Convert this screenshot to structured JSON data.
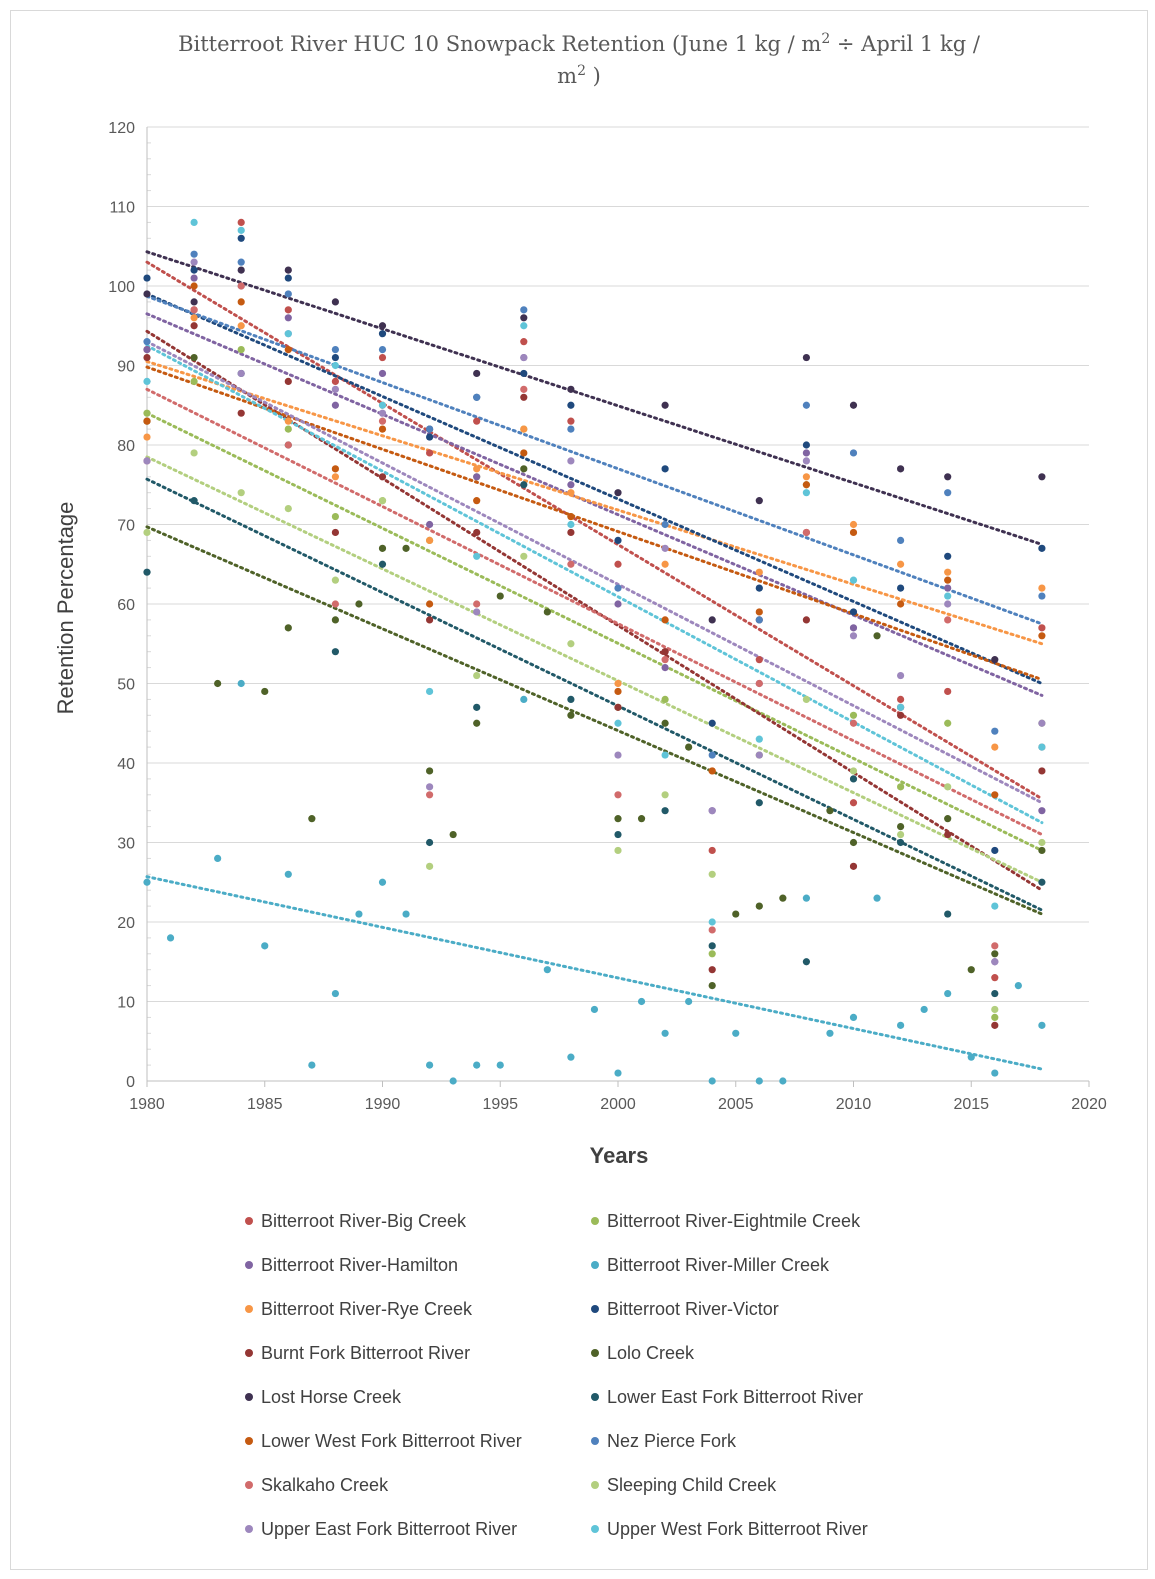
{
  "chart_data": {
    "type": "scatter",
    "title": "Bitterroot River HUC 10 Snowpack Retention (June 1 kg / m² ÷ April 1 kg / m²)",
    "title_lines": [
      "Bitterroot River HUC 10 Snowpack Retention (June 1 kg / m",
      "2",
      " ÷ April 1 kg /",
      "m",
      "2",
      " )"
    ],
    "xlabel": "Years",
    "ylabel": "Retention Percentage",
    "xlim": [
      1980,
      2020
    ],
    "ylim": [
      0,
      120
    ],
    "x_ticks": [
      1980,
      1985,
      1990,
      1995,
      2000,
      2005,
      2010,
      2015,
      2020
    ],
    "y_ticks": [
      0,
      10,
      20,
      30,
      40,
      50,
      60,
      70,
      80,
      90,
      100,
      110,
      120
    ],
    "grid": "horizontal",
    "trendlines": "linear, dotted",
    "legend_position": "bottom",
    "series": [
      {
        "name": "Bitterroot River-Big Creek",
        "color": "#c0504d",
        "x": [
          1980,
          1982,
          1984,
          1986,
          1988,
          1990,
          1992,
          1994,
          1996,
          1998,
          2000,
          2002,
          2004,
          2006,
          2008,
          2010,
          2012,
          2014,
          2016,
          2018
        ],
        "y": [
          92,
          97,
          108,
          97,
          88,
          91,
          79,
          83,
          93,
          83,
          65,
          54,
          29,
          53,
          69,
          35,
          48,
          49,
          13,
          57
        ],
        "trend": [
          103.0,
          35.5
        ]
      },
      {
        "name": "Bitterroot River-Eightmile Creek",
        "color": "#9bbb59",
        "x": [
          1980,
          1982,
          1984,
          1986,
          1988,
          1990,
          1992,
          1994,
          1996,
          1998,
          2000,
          2002,
          2004,
          2006,
          2008,
          2010,
          2012,
          2014,
          2016,
          2018
        ],
        "y": [
          84,
          88,
          92,
          82,
          71,
          73,
          68,
          76,
          82,
          71,
          47,
          48,
          16,
          41,
          75,
          46,
          37,
          45,
          8,
          45
        ],
        "trend": [
          84.0,
          29.0
        ]
      },
      {
        "name": "Bitterroot River-Hamilton",
        "color": "#8064a2",
        "x": [
          1980,
          1982,
          1984,
          1986,
          1988,
          1990,
          1992,
          1994,
          1996,
          1998,
          2000,
          2002,
          2004,
          2006,
          2008,
          2010,
          2012,
          2014,
          2016,
          2018
        ],
        "y": [
          92,
          101,
          100,
          96,
          85,
          89,
          70,
          76,
          91,
          75,
          60,
          52,
          34,
          50,
          79,
          57,
          47,
          62,
          15,
          34
        ],
        "trend": [
          96.5,
          48.5
        ]
      },
      {
        "name": "Bitterroot River-Miller Creek",
        "color": "#4bacc6",
        "x": [
          1980,
          1981,
          1983,
          1984,
          1985,
          1986,
          1987,
          1988,
          1989,
          1990,
          1991,
          1992,
          1993,
          1994,
          1995,
          1996,
          1997,
          1998,
          1999,
          2000,
          2001,
          2002,
          2003,
          2004,
          2005,
          2006,
          2007,
          2008,
          2009,
          2010,
          2011,
          2012,
          2013,
          2014,
          2015,
          2016,
          2017,
          2018
        ],
        "y": [
          25,
          18,
          28,
          50,
          17,
          26,
          2,
          11,
          21,
          25,
          21,
          2,
          0,
          2,
          2,
          48,
          14,
          3,
          9,
          1,
          10,
          6,
          10,
          0,
          6,
          0,
          0,
          23,
          6,
          8,
          23,
          7,
          9,
          11,
          3,
          1,
          12,
          7
        ],
        "trend": [
          25.7,
          1.5
        ]
      },
      {
        "name": "Bitterroot River-Rye Creek",
        "color": "#f79646",
        "x": [
          1980,
          1982,
          1984,
          1986,
          1988,
          1990,
          1992,
          1994,
          1996,
          1998,
          2000,
          2002,
          2004,
          2006,
          2008,
          2010,
          2012,
          2014,
          2016,
          2018
        ],
        "y": [
          81,
          96,
          95,
          83,
          76,
          85,
          68,
          77,
          82,
          74,
          50,
          65,
          39,
          64,
          76,
          70,
          65,
          64,
          42,
          62
        ],
        "trend": [
          90.5,
          55.0
        ]
      },
      {
        "name": "Bitterroot River-Victor",
        "color": "#1f497d",
        "x": [
          1980,
          1982,
          1984,
          1986,
          1988,
          1990,
          1992,
          1994,
          1996,
          1998,
          2000,
          2002,
          2004,
          2006,
          2008,
          2010,
          2012,
          2014,
          2016,
          2018
        ],
        "y": [
          101,
          102,
          106,
          101,
          91,
          94,
          81,
          86,
          89,
          85,
          68,
          77,
          45,
          62,
          80,
          59,
          62,
          66,
          29,
          67
        ],
        "trend": [
          99.0,
          50.0
        ]
      },
      {
        "name": "Burnt Fork Bitterroot River",
        "color": "#943634",
        "x": [
          1980,
          1982,
          1984,
          1986,
          1988,
          1990,
          1992,
          1994,
          1996,
          1998,
          2000,
          2002,
          2004,
          2006,
          2008,
          2010,
          2012,
          2014,
          2016,
          2018
        ],
        "y": [
          91,
          95,
          84,
          88,
          69,
          76,
          58,
          69,
          86,
          69,
          47,
          54,
          14,
          58,
          58,
          27,
          46,
          31,
          7,
          39
        ],
        "trend": [
          94.3,
          24.0
        ]
      },
      {
        "name": "Lolo Creek",
        "color": "#4f6228",
        "x": [
          1980,
          1982,
          1983,
          1985,
          1986,
          1987,
          1988,
          1989,
          1990,
          1991,
          1992,
          1993,
          1994,
          1995,
          1996,
          1997,
          1998,
          2000,
          2001,
          2002,
          2003,
          2004,
          2005,
          2006,
          2007,
          2009,
          2010,
          2011,
          2012,
          2014,
          2015,
          2016,
          2018
        ],
        "y": [
          83,
          91,
          50,
          49,
          57,
          33,
          58,
          60,
          67,
          67,
          39,
          31,
          45,
          61,
          77,
          59,
          46,
          33,
          33,
          45,
          42,
          12,
          21,
          22,
          23,
          34,
          30,
          56,
          32,
          33,
          14,
          16,
          29
        ],
        "trend": [
          69.7,
          21.0
        ]
      },
      {
        "name": "Lost Horse Creek",
        "color": "#3f3151",
        "x": [
          1980,
          1982,
          1984,
          1986,
          1988,
          1990,
          1992,
          1994,
          1996,
          1998,
          2000,
          2002,
          2004,
          2006,
          2008,
          2010,
          2012,
          2014,
          2016,
          2018
        ],
        "y": [
          99,
          98,
          102,
          102,
          98,
          95,
          82,
          89,
          96,
          87,
          74,
          85,
          58,
          73,
          91,
          85,
          77,
          76,
          53,
          76
        ],
        "trend": [
          104.3,
          67.5
        ]
      },
      {
        "name": "Lower East Fork Bitterroot River",
        "color": "#215968",
        "x": [
          1980,
          1982,
          1984,
          1986,
          1988,
          1990,
          1992,
          1994,
          1996,
          1998,
          2000,
          2002,
          2004,
          2006,
          2008,
          2010,
          2012,
          2014,
          2016,
          2018
        ],
        "y": [
          64,
          73,
          89,
          80,
          54,
          65,
          30,
          47,
          75,
          48,
          31,
          34,
          17,
          35,
          15,
          38,
          30,
          21,
          11,
          25
        ],
        "trend": [
          75.7,
          21.5
        ]
      },
      {
        "name": "Lower West Fork Bitterroot River",
        "color": "#c55a11",
        "x": [
          1980,
          1982,
          1984,
          1986,
          1988,
          1990,
          1992,
          1994,
          1996,
          1998,
          2000,
          2002,
          2004,
          2006,
          2008,
          2010,
          2012,
          2014,
          2016,
          2018
        ],
        "y": [
          83,
          100,
          98,
          92,
          77,
          82,
          60,
          73,
          79,
          71,
          49,
          58,
          39,
          59,
          75,
          69,
          60,
          63,
          36,
          56
        ],
        "trend": [
          89.8,
          50.5
        ]
      },
      {
        "name": "Nez Pierce Fork",
        "color": "#4f81bd",
        "x": [
          1980,
          1982,
          1984,
          1986,
          1988,
          1990,
          1992,
          1994,
          1996,
          1998,
          2000,
          2002,
          2004,
          2006,
          2008,
          2010,
          2012,
          2014,
          2016,
          2018
        ],
        "y": [
          93,
          104,
          103,
          99,
          92,
          92,
          82,
          86,
          97,
          82,
          62,
          70,
          41,
          58,
          85,
          79,
          68,
          74,
          44,
          61
        ],
        "trend": [
          98.7,
          57.5
        ]
      },
      {
        "name": "Skalkaho Creek",
        "color": "#d16b6b",
        "x": [
          1980,
          1982,
          1984,
          1986,
          1988,
          1990,
          1992,
          1994,
          1996,
          1998,
          2000,
          2002,
          2004,
          2006,
          2008,
          2010,
          2012,
          2014,
          2016,
          2018
        ],
        "y": [
          78,
          97,
          100,
          80,
          60,
          83,
          36,
          60,
          87,
          65,
          36,
          53,
          19,
          50,
          69,
          45,
          47,
          58,
          17,
          42
        ],
        "trend": [
          87.0,
          31.0
        ]
      },
      {
        "name": "Sleeping Child Creek",
        "color": "#b3cf7f",
        "x": [
          1980,
          1982,
          1984,
          1986,
          1988,
          1990,
          1992,
          1994,
          1996,
          1998,
          2000,
          2002,
          2004,
          2006,
          2008,
          2010,
          2012,
          2014,
          2016,
          2018
        ],
        "y": [
          69,
          79,
          74,
          72,
          63,
          73,
          27,
          51,
          66,
          55,
          29,
          36,
          26,
          41,
          48,
          39,
          31,
          37,
          9,
          30
        ],
        "trend": [
          78.5,
          25.0
        ]
      },
      {
        "name": "Upper East Fork Bitterroot River",
        "color": "#9d87bd",
        "x": [
          1980,
          1982,
          1984,
          1986,
          1988,
          1990,
          1992,
          1994,
          1996,
          1998,
          2000,
          2002,
          2004,
          2006,
          2008,
          2010,
          2012,
          2014,
          2016,
          2018
        ],
        "y": [
          78,
          103,
          89,
          94,
          87,
          84,
          37,
          59,
          91,
          78,
          41,
          67,
          34,
          41,
          78,
          56,
          51,
          60,
          15,
          45
        ],
        "trend": [
          93.0,
          35.0
        ]
      },
      {
        "name": "Upper West Fork Bitterroot River",
        "color": "#5fc4d8",
        "x": [
          1980,
          1982,
          1984,
          1986,
          1988,
          1990,
          1992,
          1994,
          1996,
          1998,
          2000,
          2002,
          2004,
          2006,
          2008,
          2010,
          2012,
          2014,
          2016,
          2018
        ],
        "y": [
          88,
          108,
          107,
          94,
          90,
          85,
          49,
          66,
          95,
          70,
          45,
          41,
          20,
          43,
          74,
          63,
          47,
          61,
          22,
          42
        ],
        "trend": [
          92.5,
          32.5
        ]
      }
    ]
  }
}
